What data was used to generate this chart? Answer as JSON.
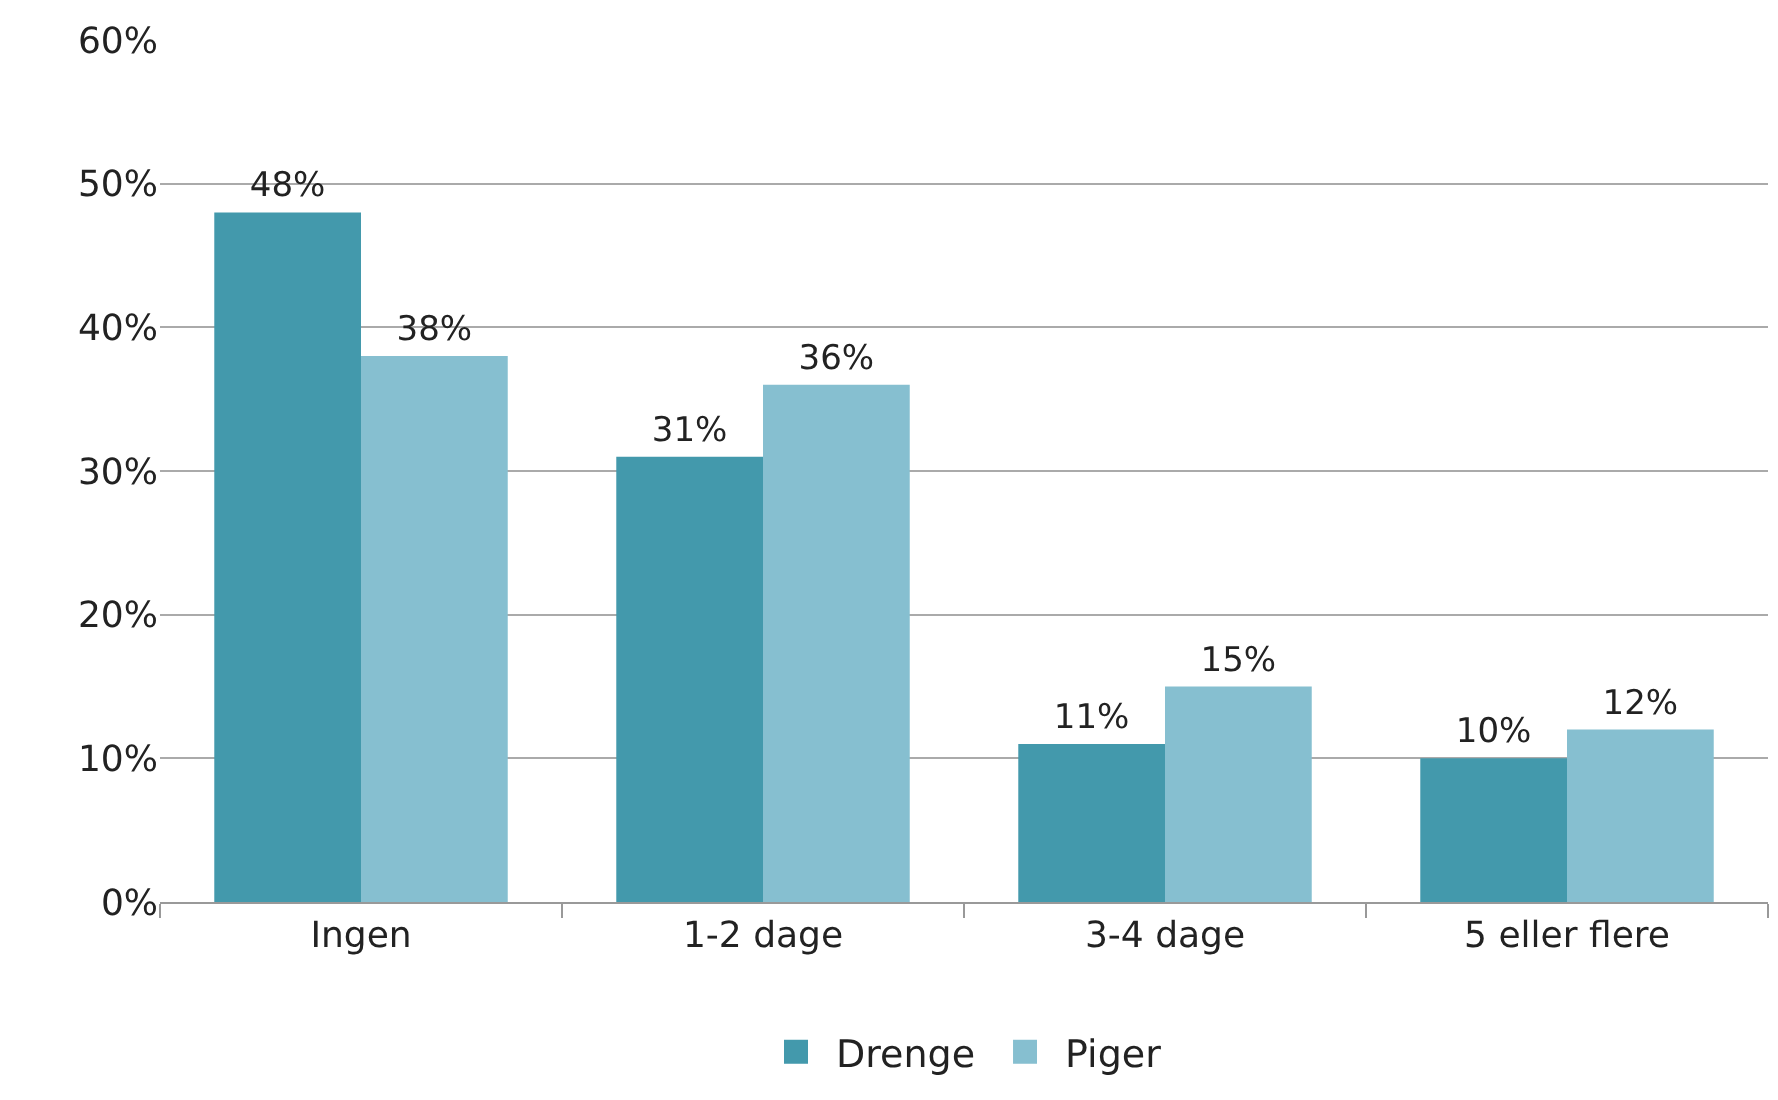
{
  "chart_data": {
    "type": "bar",
    "categories": [
      "Ingen",
      "1-2 dage",
      "3-4 dage",
      "5 eller flere"
    ],
    "series": [
      {
        "name": "Drenge",
        "color": "#4399ac",
        "values": [
          48,
          31,
          11,
          10
        ],
        "value_labels": [
          "48%",
          "31%",
          "11%",
          "10%"
        ]
      },
      {
        "name": "Piger",
        "color": "#86bfd0",
        "values": [
          38,
          36,
          15,
          12
        ],
        "value_labels": [
          "38%",
          "36%",
          "15%",
          "12%"
        ]
      }
    ],
    "ylim": [
      0,
      60
    ],
    "yticks": [
      {
        "value": 0,
        "label": "0%"
      },
      {
        "value": 10,
        "label": "10%"
      },
      {
        "value": 20,
        "label": "20%"
      },
      {
        "value": 30,
        "label": "30%"
      },
      {
        "value": 40,
        "label": "40%"
      },
      {
        "value": 50,
        "label": "50%"
      },
      {
        "value": 60,
        "label": "60%"
      }
    ],
    "grid": "y",
    "legend": "bottom"
  }
}
